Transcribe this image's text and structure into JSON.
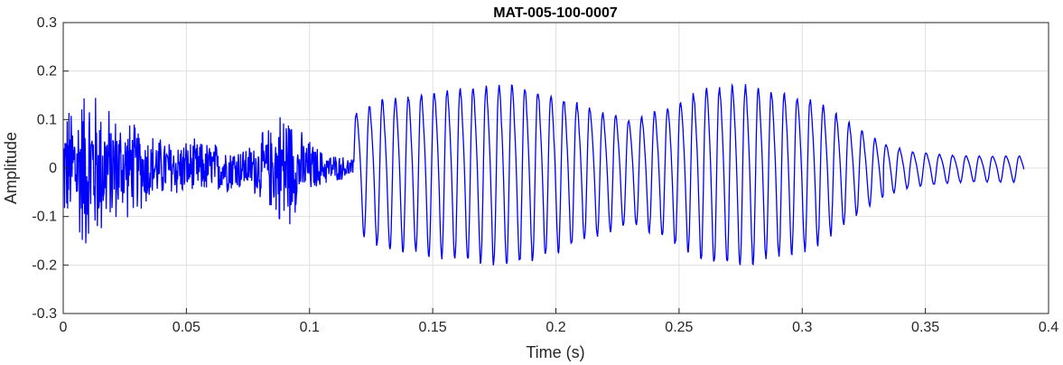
{
  "chart_data": {
    "type": "line",
    "title": "MAT-005-100-0007",
    "xlabel": "Time (s)",
    "ylabel": "Amplitude",
    "xlim": [
      0,
      0.4
    ],
    "ylim": [
      -0.3,
      0.3
    ],
    "grid": true,
    "x_ticks": [
      0,
      0.05,
      0.1,
      0.15,
      0.2,
      0.25,
      0.3,
      0.35,
      0.4
    ],
    "x_tick_labels": [
      "0",
      "0.05",
      "0.1",
      "0.15",
      "0.2",
      "0.25",
      "0.3",
      "0.35",
      "0.4"
    ],
    "y_ticks": [
      0.3,
      0.2,
      0.1,
      0,
      -0.1,
      -0.2,
      -0.3
    ],
    "y_tick_labels": [
      "0.3",
      "0.2",
      "0.1",
      "0",
      "-0.1",
      "-0.2",
      "-0.3"
    ],
    "series_color": "#0000ff",
    "segments": [
      {
        "kind": "noise",
        "x_start": 0.0,
        "x_end": 0.118,
        "envelope": [
          [
            0.0,
            0.13
          ],
          [
            0.005,
            0.16
          ],
          [
            0.01,
            0.2
          ],
          [
            0.02,
            0.13
          ],
          [
            0.03,
            0.1
          ],
          [
            0.04,
            0.07
          ],
          [
            0.06,
            0.06
          ],
          [
            0.075,
            0.05
          ],
          [
            0.085,
            0.1
          ],
          [
            0.09,
            0.16
          ],
          [
            0.095,
            0.09
          ],
          [
            0.105,
            0.04
          ],
          [
            0.118,
            0.02
          ]
        ]
      },
      {
        "kind": "oscillation",
        "x_start": 0.118,
        "x_end": 0.333,
        "frequency_hz": 190,
        "envelope": [
          [
            0.12,
            0.14
          ],
          [
            0.128,
            0.17
          ],
          [
            0.14,
            0.18
          ],
          [
            0.16,
            0.2
          ],
          [
            0.18,
            0.21
          ],
          [
            0.19,
            0.2
          ],
          [
            0.21,
            0.16
          ],
          [
            0.23,
            0.12
          ],
          [
            0.245,
            0.15
          ],
          [
            0.26,
            0.2
          ],
          [
            0.275,
            0.21
          ],
          [
            0.29,
            0.19
          ],
          [
            0.305,
            0.17
          ],
          [
            0.315,
            0.13
          ],
          [
            0.325,
            0.09
          ],
          [
            0.333,
            0.06
          ]
        ]
      },
      {
        "kind": "decay",
        "x_start": 0.333,
        "x_end": 0.39,
        "frequency_hz": 185,
        "envelope": [
          [
            0.333,
            0.06
          ],
          [
            0.345,
            0.04
          ],
          [
            0.365,
            0.03
          ],
          [
            0.39,
            0.03
          ]
        ]
      }
    ]
  }
}
